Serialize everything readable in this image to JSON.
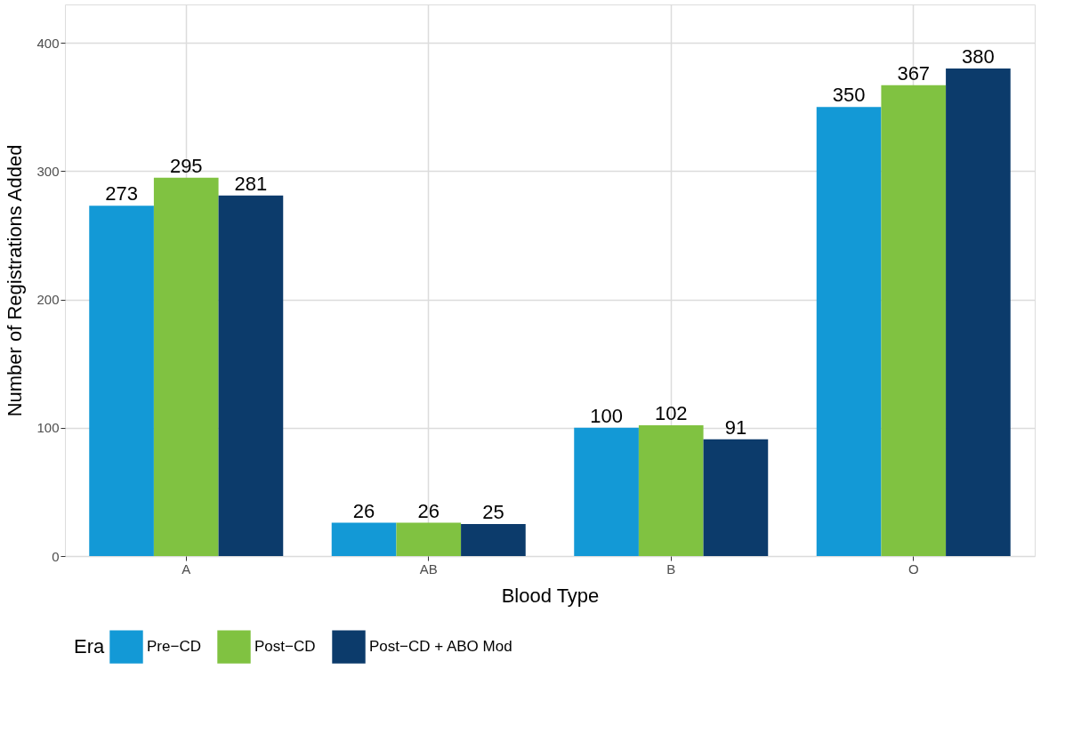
{
  "chart_data": {
    "type": "bar",
    "xlabel": "Blood Type",
    "ylabel": "Number of Registrations Added",
    "legend_title": "Era",
    "categories": [
      "A",
      "AB",
      "B",
      "O"
    ],
    "series": [
      {
        "name": "Pre−CD",
        "color": "#1399d6",
        "values": [
          273,
          26,
          100,
          350
        ]
      },
      {
        "name": "Post−CD",
        "color": "#80c241",
        "values": [
          295,
          26,
          102,
          367
        ]
      },
      {
        "name": "Post−CD + ABO Mod",
        "color": "#0c3b6b",
        "values": [
          281,
          25,
          91,
          380
        ]
      }
    ],
    "ylim": [
      0,
      430
    ],
    "yticks": [
      0,
      100,
      200,
      300,
      400
    ],
    "grid": true,
    "legend": "bottom",
    "data_labels": true
  }
}
